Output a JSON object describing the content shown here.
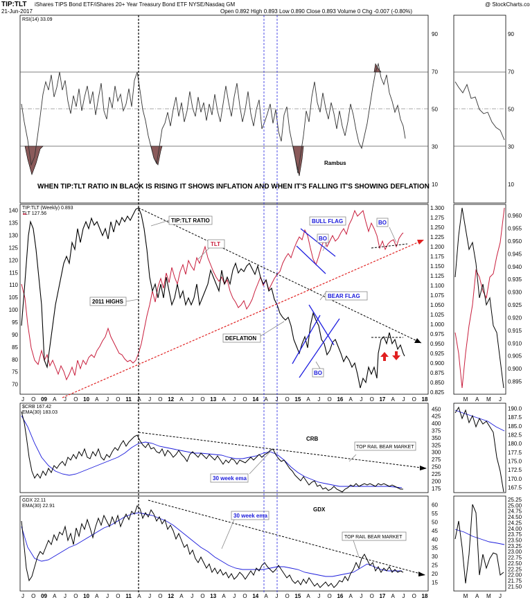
{
  "header": {
    "ticker": "TIP:TLT",
    "description": "iShares TIPS Bond ETF/iShares 20+ Year Treasury Bond ETF  NYSE/Nasdaq GM",
    "date": "21-Jun-2017",
    "quote": "Open 0.892  High 0.893  Low 0.890  Close 0.893  Volume 0  Chg -0.007 (-0.80%)",
    "watermark": "@ StockCharts.com"
  },
  "colors": {
    "black_line": "#000000",
    "red_line": "#c81d3c",
    "ema_line": "#1a1adb",
    "rsi_fill": "#8a5a5a",
    "guide_red": "#e02020",
    "guide_blue": "#2020e0"
  },
  "x_axis": {
    "labels": [
      "J",
      "O",
      "09",
      "A",
      "J",
      "O",
      "10",
      "A",
      "J",
      "O",
      "11",
      "A",
      "J",
      "O",
      "12",
      "A",
      "J",
      "O",
      "13",
      "A",
      "J",
      "O",
      "14",
      "A",
      "J",
      "O",
      "15",
      "A",
      "J",
      "O",
      "16",
      "A",
      "J",
      "O",
      "17",
      "A",
      "J",
      "O",
      "18"
    ],
    "right_labels": [
      "M",
      "A",
      "M",
      "J"
    ]
  },
  "annotations": {
    "inflation_note": "WHEN TIP:TLT RATIO IN BLACK IS RISING IT SHOWS INFLATION AND WHEN IT'S FALLING IT'S SHOWING DEFLATION",
    "rambus": "Rambus",
    "tip_tlt_ratio": "TIP:TLT RATIO",
    "tlt": "TLT",
    "highs_2011": "2011 HIGHS",
    "deflation": "DEFLATION",
    "bull_flag": "BULL FLAG",
    "bear_flag": "BEAR FLAG",
    "bo1": "BO",
    "bo2": "BO",
    "bo3": "BO",
    "crb": "CRB",
    "gdx": "GDX",
    "ema_crb": "30 week ema",
    "ema_gdx": "30 week ema",
    "top_rail_crb": "TOP RAIL BEAR MARKET",
    "top_rail_gdx": "TOP RAIL BEAR MARKET"
  },
  "chart_data": [
    {
      "type": "line",
      "panel": "rsi",
      "legend": "RSI(14) 33.09",
      "ylim": [
        0,
        100
      ],
      "yticks": [
        10,
        30,
        50,
        70,
        90
      ],
      "right_yticks": [
        10,
        30,
        50,
        70,
        90
      ],
      "levels": [
        30,
        50,
        70
      ]
    },
    {
      "type": "line",
      "panel": "ratio",
      "series": [
        {
          "name": "TIP:TLT (Weekly) 0.893",
          "axis": "right"
        },
        {
          "name": "TLT 127.56",
          "axis": "left"
        }
      ],
      "left_ticks": [
        70,
        75,
        80,
        85,
        90,
        95,
        100,
        105,
        110,
        115,
        120,
        125,
        130,
        135,
        140
      ],
      "left_ylim": [
        66,
        141
      ],
      "right_ticks": [
        "0.825",
        "0.850",
        "0.875",
        "0.900",
        "0.925",
        "0.950",
        "0.975",
        "1.000",
        "1.025",
        "1.050",
        "1.075",
        "1.100",
        "1.125",
        "1.150",
        "1.175",
        "1.200",
        "1.225",
        "1.250",
        "1.275",
        "1.300"
      ],
      "right_ylim": [
        0.82,
        1.3
      ],
      "inset_ticks": [
        "0.895",
        "0.900",
        "0.905",
        "0.910",
        "0.915",
        "0.920",
        "0.925",
        "0.930",
        "0.935",
        "0.940",
        "0.945",
        "0.950",
        "0.955",
        "0.960"
      ]
    },
    {
      "type": "line",
      "panel": "crb",
      "series": [
        {
          "name": "$CRB 167.42"
        },
        {
          "name": "EMA(30) 183.03"
        }
      ],
      "ylim": [
        160,
        470
      ],
      "yticks": [
        175,
        200,
        225,
        250,
        275,
        300,
        325,
        350,
        375,
        400,
        425,
        450
      ],
      "inset_ticks": [
        "167.5",
        "170.0",
        "172.5",
        "175.0",
        "177.5",
        "180.0",
        "182.5",
        "185.0",
        "187.5",
        "190.0"
      ]
    },
    {
      "type": "line",
      "panel": "gdx",
      "series": [
        {
          "name": "GDX 22.11"
        },
        {
          "name": "EMA(30) 22.91"
        }
      ],
      "ylim": [
        10,
        65
      ],
      "yticks": [
        15,
        20,
        25,
        30,
        35,
        40,
        45,
        50,
        55,
        60
      ],
      "inset_ticks": [
        "21.50",
        "21.75",
        "22.00",
        "22.25",
        "22.50",
        "22.75",
        "23.00",
        "23.25",
        "23.50",
        "23.75",
        "24.00",
        "24.25",
        "24.50",
        "24.75",
        "25.00",
        "25.25"
      ]
    }
  ]
}
